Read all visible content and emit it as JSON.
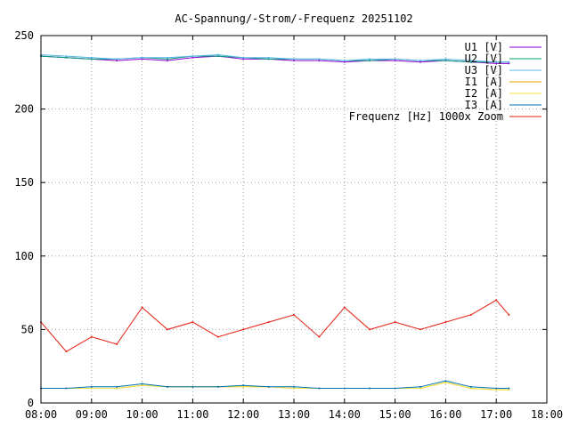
{
  "chart_data": {
    "type": "line",
    "title": "AC-Spannung/-Strom/-Frequenz 20251102",
    "xlabel": "",
    "ylabel": "",
    "x_ticks": [
      "08:00",
      "09:00",
      "10:00",
      "11:00",
      "12:00",
      "13:00",
      "14:00",
      "15:00",
      "16:00",
      "17:00",
      "18:00"
    ],
    "y_ticks": [
      "0",
      "50",
      "100",
      "150",
      "200",
      "250"
    ],
    "xlim": [
      "08:00",
      "18:00"
    ],
    "ylim": [
      0,
      250
    ],
    "grid": true,
    "legend_position": "top-right",
    "x": [
      "08:00",
      "08:30",
      "09:00",
      "09:30",
      "10:00",
      "10:30",
      "11:00",
      "11:30",
      "12:00",
      "12:30",
      "13:00",
      "13:30",
      "14:00",
      "14:30",
      "15:00",
      "15:30",
      "16:00",
      "16:30",
      "17:00",
      "17:15"
    ],
    "series": [
      {
        "name": "U1 [V]",
        "color": "#9400d3",
        "values": [
          236,
          235,
          234,
          233,
          234,
          233,
          235,
          236,
          234,
          234,
          233,
          233,
          232,
          233,
          233,
          232,
          233,
          232,
          231,
          231
        ]
      },
      {
        "name": "U2 [V]",
        "color": "#009e73",
        "values": [
          236,
          235,
          234,
          234,
          235,
          234,
          236,
          236,
          235,
          234,
          234,
          234,
          233,
          233,
          234,
          233,
          233,
          232,
          232,
          232
        ]
      },
      {
        "name": "U3 [V]",
        "color": "#56b4e9",
        "values": [
          237,
          236,
          235,
          234,
          235,
          235,
          236,
          237,
          235,
          235,
          234,
          234,
          233,
          234,
          234,
          233,
          234,
          233,
          232,
          232
        ]
      },
      {
        "name": "I1 [A]",
        "color": "#e69f00",
        "values": [
          10,
          10,
          10,
          10,
          12,
          11,
          11,
          11,
          11,
          11,
          10,
          10,
          10,
          10,
          10,
          10,
          14,
          10,
          9,
          9
        ]
      },
      {
        "name": "I2 [A]",
        "color": "#f0e442",
        "values": [
          10,
          10,
          10,
          10,
          12,
          11,
          11,
          11,
          11,
          11,
          10,
          10,
          10,
          10,
          10,
          10,
          14,
          10,
          9,
          9
        ]
      },
      {
        "name": "I3 [A]",
        "color": "#0072b2",
        "values": [
          10,
          10,
          11,
          11,
          13,
          11,
          11,
          11,
          12,
          11,
          11,
          10,
          10,
          10,
          10,
          11,
          15,
          11,
          10,
          10
        ]
      },
      {
        "name": "Frequenz [Hz] 1000x Zoom",
        "color": "#e51e10",
        "values": [
          55,
          35,
          45,
          40,
          65,
          50,
          55,
          45,
          50,
          55,
          60,
          45,
          65,
          50,
          55,
          50,
          55,
          60,
          70,
          60
        ]
      }
    ]
  }
}
